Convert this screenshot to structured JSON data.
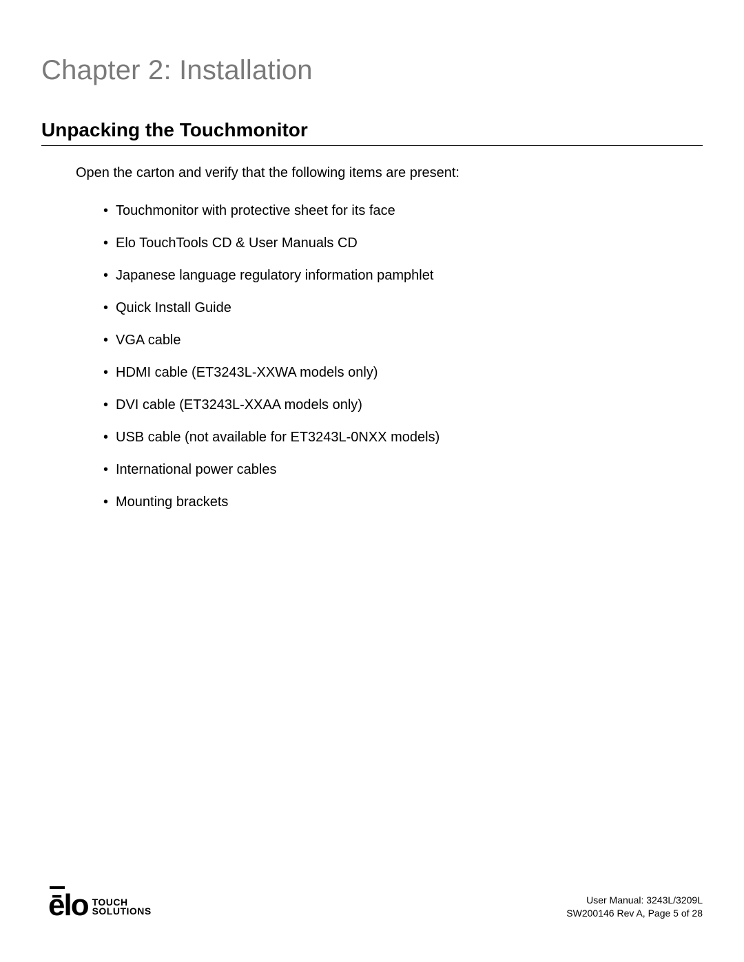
{
  "chapter_title": "Chapter 2: Installation",
  "section_title": "Unpacking the Touchmonitor",
  "intro": "Open the carton and verify that the following items are present:",
  "items": [
    "Touchmonitor with protective sheet for its face",
    "Elo TouchTools CD & User Manuals CD",
    "Japanese language regulatory information pamphlet",
    "Quick Install Guide",
    "VGA cable",
    "HDMI cable (ET3243L-XXWA models only)",
    "DVI cable (ET3243L-XXAA models only)",
    "USB cable (not available for ET3243L-0NXX models)",
    "International power cables",
    "Mounting brackets"
  ],
  "logo": {
    "mark": "ēlo",
    "line1": "TOUCH",
    "line2": "SOLUTIONS"
  },
  "footer": {
    "manual": "User Manual: 3243L/3209L",
    "rev": "SW200146 Rev A, Page 5 of 28"
  },
  "colors": {
    "chapter_title": "#7a7a7a",
    "text": "#000000",
    "background": "#ffffff",
    "rule": "#000000"
  },
  "typography": {
    "chapter_title_size_pt": 30,
    "section_title_size_pt": 21,
    "body_size_pt": 15,
    "footer_size_pt": 10
  }
}
